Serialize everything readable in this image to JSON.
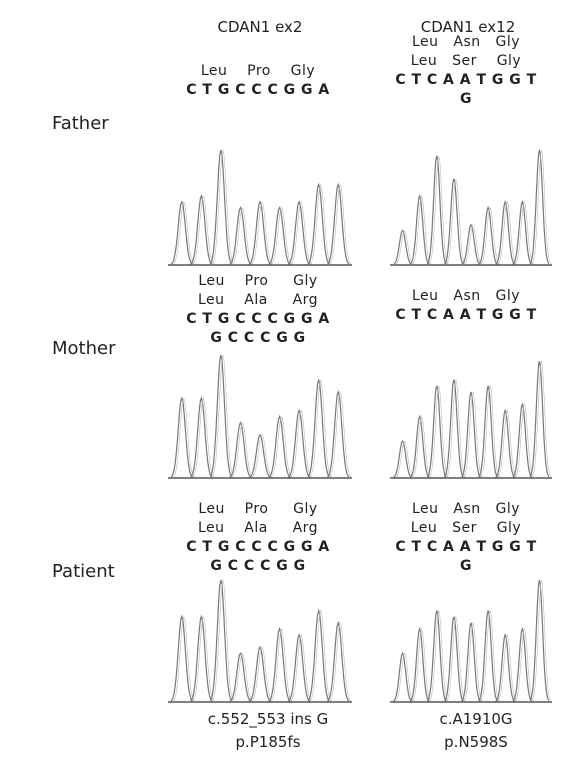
{
  "columns": [
    "CDAN1 ex2",
    "CDAN1 ex12"
  ],
  "rows": [
    {
      "label": "Father",
      "panels": [
        {
          "lines": [
            "Leu    Pro    Gly",
            "C T G C C C G G A"
          ]
        },
        {
          "lines": [
            "Leu   Asn   Gly",
            "Leu   Ser    Gly",
            "C T C A A T G G T",
            "G"
          ]
        }
      ]
    },
    {
      "label": "Mother",
      "panels": [
        {
          "lines": [
            "Leu    Pro     Gly",
            "Leu    Ala     Arg",
            "C T G C C C G G A",
            "G C C C G G"
          ]
        },
        {
          "lines": [
            "Leu   Asn   Gly",
            "C T C A A T G G T"
          ]
        }
      ]
    },
    {
      "label": "Patient",
      "panels": [
        {
          "lines": [
            "Leu    Pro     Gly",
            "Leu    Ala     Arg",
            "C T G C C C G G A",
            "G C C C G G"
          ]
        },
        {
          "lines": [
            "Leu   Asn   Gly",
            "Leu   Ser    Gly",
            "C T C A A T G G T",
            "G"
          ]
        }
      ]
    }
  ],
  "footers": [
    [
      "c.552_553 ins G",
      "p.P185fs"
    ],
    [
      "c.A1910G",
      "p.N598S"
    ]
  ]
}
